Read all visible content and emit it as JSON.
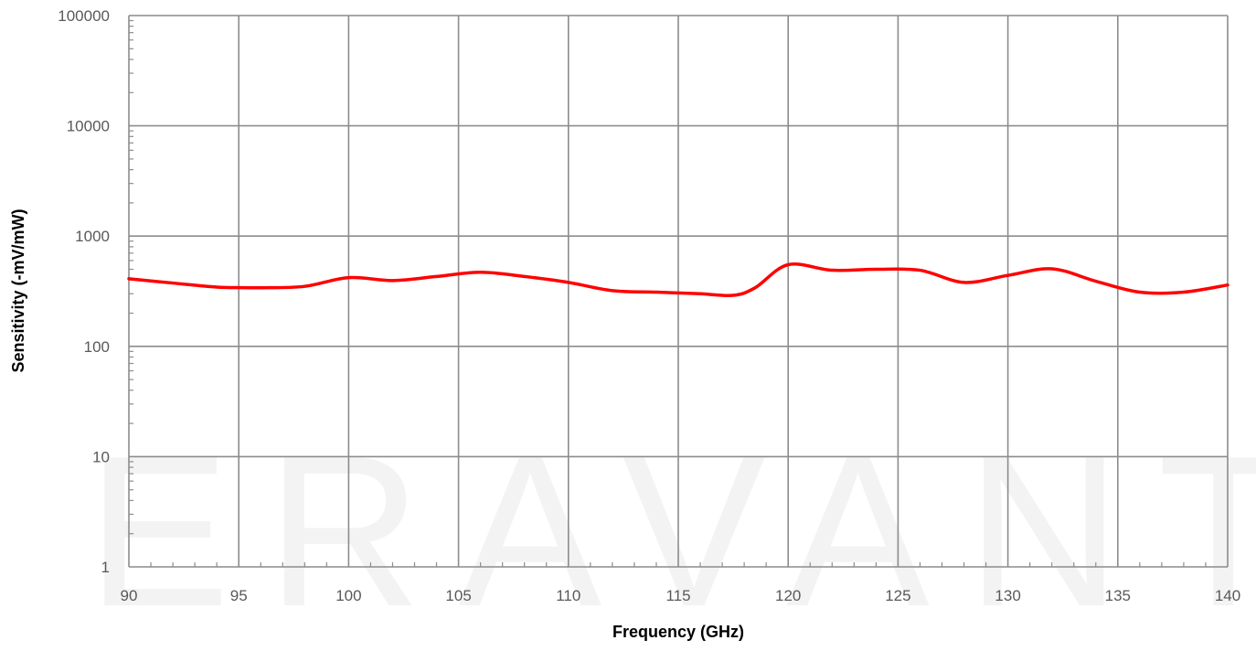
{
  "chart_data": {
    "type": "line",
    "xlabel": "Frequency (GHz)",
    "ylabel": "Sensitivity (-mV/mW)",
    "xlim": [
      90,
      140
    ],
    "ylim": [
      1,
      100000
    ],
    "y_scale": "log",
    "x_ticks": [
      "90",
      "95",
      "100",
      "105",
      "110",
      "115",
      "120",
      "125",
      "130",
      "135",
      "140"
    ],
    "y_ticks": [
      "1",
      "10",
      "100",
      "1000",
      "10000",
      "100000"
    ],
    "grid": true,
    "series": [
      {
        "color": "#ff0000",
        "x": [
          90,
          92,
          94,
          96,
          98,
          100,
          102,
          104,
          106,
          108,
          110,
          112,
          114,
          116,
          117.5,
          118.5,
          120,
          122,
          124,
          126,
          128,
          130,
          132,
          134,
          136,
          138,
          140
        ],
        "y": [
          410,
          375,
          345,
          340,
          350,
          420,
          395,
          430,
          470,
          430,
          380,
          320,
          310,
          300,
          290,
          340,
          550,
          490,
          500,
          490,
          380,
          440,
          505,
          390,
          310,
          310,
          360
        ]
      }
    ]
  },
  "watermark": "ERAVANT"
}
